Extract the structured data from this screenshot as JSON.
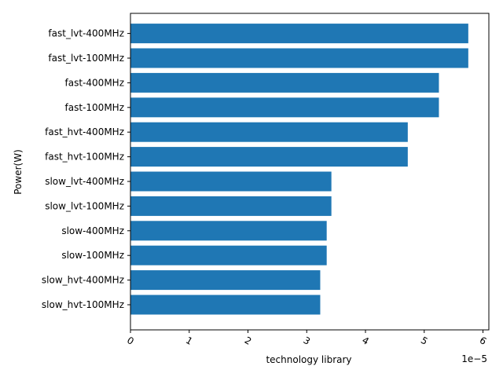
{
  "chart_data": {
    "type": "bar",
    "orientation": "horizontal",
    "categories": [
      "slow_hvt-100MHz",
      "slow_hvt-400MHz",
      "slow-100MHz",
      "slow-400MHz",
      "slow_lvt-100MHz",
      "slow_lvt-400MHz",
      "fast_hvt-100MHz",
      "fast_hvt-400MHz",
      "fast-100MHz",
      "fast-400MHz",
      "fast_lvt-100MHz",
      "fast_lvt-400MHz"
    ],
    "values": [
      3.23e-05,
      3.23e-05,
      3.34e-05,
      3.34e-05,
      3.42e-05,
      3.42e-05,
      4.72e-05,
      4.72e-05,
      5.25e-05,
      5.25e-05,
      5.75e-05,
      5.75e-05
    ],
    "title": "",
    "xlabel": "technology library",
    "ylabel": "Power(W)",
    "xlim": [
      0,
      6.1e-05
    ],
    "x_ticks": [
      "0",
      "1",
      "2",
      "3",
      "4",
      "5",
      "6"
    ],
    "x_tick_values": [
      0,
      1e-05,
      2e-05,
      3e-05,
      4e-05,
      5e-05,
      6e-05
    ],
    "x_offset_text": "1e−5",
    "x_tick_rotation_deg": 30,
    "grid": false,
    "bar_color": "#1f77b4"
  }
}
